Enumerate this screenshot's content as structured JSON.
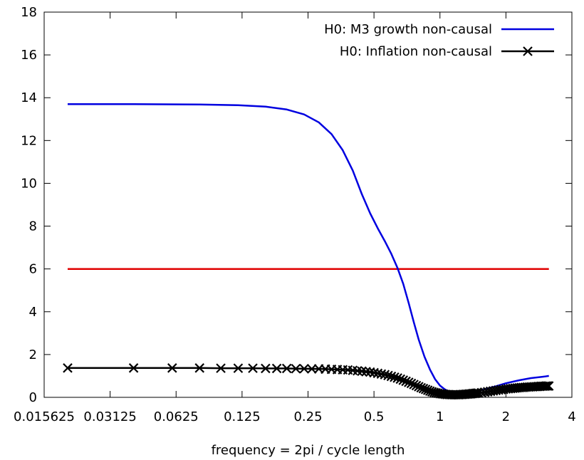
{
  "chart_data": {
    "type": "line",
    "xlabel": "frequency = 2pi / cycle length",
    "ylabel": "",
    "x_scale": "log2",
    "xlim": [
      0.015625,
      4
    ],
    "ylim": [
      0,
      18
    ],
    "x_ticks": [
      {
        "value": 0.015625,
        "label": "0.015625"
      },
      {
        "value": 0.03125,
        "label": "0.03125"
      },
      {
        "value": 0.0625,
        "label": "0.0625"
      },
      {
        "value": 0.125,
        "label": "0.125"
      },
      {
        "value": 0.25,
        "label": "0.25"
      },
      {
        "value": 0.5,
        "label": "0.5"
      },
      {
        "value": 1,
        "label": "1"
      },
      {
        "value": 2,
        "label": "2"
      },
      {
        "value": 4,
        "label": "4"
      }
    ],
    "y_ticks": [
      0,
      2,
      4,
      6,
      8,
      10,
      12,
      14,
      16,
      18
    ],
    "grid": false,
    "legend_position": "top-right",
    "series": [
      {
        "name": "H0: M3 growth non-causal",
        "color": "#0000e0",
        "marker": "none",
        "x": [
          0.02,
          0.04,
          0.08,
          0.12,
          0.16,
          0.2,
          0.24,
          0.28,
          0.32,
          0.36,
          0.4,
          0.44,
          0.48,
          0.52,
          0.56,
          0.6,
          0.64,
          0.68,
          0.72,
          0.76,
          0.8,
          0.85,
          0.9,
          0.95,
          1.0,
          1.05,
          1.1,
          1.15,
          1.2,
          1.25,
          1.3,
          1.35,
          1.4,
          1.5,
          1.6,
          1.8,
          2.0,
          2.3,
          2.6,
          3.0,
          3.14
        ],
        "values": [
          13.7,
          13.7,
          13.68,
          13.65,
          13.58,
          13.45,
          13.22,
          12.85,
          12.3,
          11.55,
          10.6,
          9.5,
          8.6,
          7.9,
          7.3,
          6.7,
          6.05,
          5.3,
          4.4,
          3.5,
          2.7,
          1.9,
          1.3,
          0.85,
          0.55,
          0.38,
          0.27,
          0.2,
          0.17,
          0.16,
          0.17,
          0.2,
          0.23,
          0.3,
          0.38,
          0.52,
          0.66,
          0.8,
          0.9,
          0.97,
          1.0
        ]
      },
      {
        "name": "H0: Inflation non-causal",
        "color": "#000000",
        "marker": "x",
        "x": [
          0.02,
          0.04,
          0.06,
          0.08,
          0.1,
          0.12,
          0.14,
          0.16,
          0.18,
          0.2,
          0.22,
          0.24,
          0.26,
          0.28,
          0.3,
          0.32,
          0.34,
          0.36,
          0.38,
          0.4,
          0.42,
          0.44,
          0.46,
          0.48,
          0.5,
          0.52,
          0.54,
          0.56,
          0.58,
          0.6,
          0.62,
          0.64,
          0.66,
          0.68,
          0.7,
          0.72,
          0.74,
          0.76,
          0.78,
          0.8,
          0.82,
          0.84,
          0.86,
          0.88,
          0.9,
          0.92,
          0.94,
          0.96,
          0.98,
          1.0,
          1.02,
          1.04,
          1.06,
          1.08,
          1.1,
          1.12,
          1.14,
          1.16,
          1.18,
          1.2,
          1.22,
          1.24,
          1.26,
          1.28,
          1.3,
          1.32,
          1.34,
          1.36,
          1.38,
          1.4,
          1.42,
          1.44,
          1.46,
          1.48,
          1.5,
          1.55,
          1.6,
          1.65,
          1.7,
          1.75,
          1.8,
          1.85,
          1.9,
          1.95,
          2.0,
          2.05,
          2.1,
          2.15,
          2.2,
          2.25,
          2.3,
          2.35,
          2.4,
          2.45,
          2.5,
          2.55,
          2.6,
          2.65,
          2.7,
          2.75,
          2.8,
          2.85,
          2.9,
          2.95,
          3.0,
          3.05,
          3.1,
          3.14
        ],
        "values": [
          1.37,
          1.37,
          1.37,
          1.37,
          1.36,
          1.36,
          1.36,
          1.35,
          1.35,
          1.35,
          1.34,
          1.34,
          1.33,
          1.33,
          1.32,
          1.31,
          1.3,
          1.29,
          1.28,
          1.26,
          1.24,
          1.22,
          1.2,
          1.18,
          1.15,
          1.12,
          1.09,
          1.06,
          1.02,
          0.98,
          0.94,
          0.9,
          0.85,
          0.8,
          0.75,
          0.7,
          0.65,
          0.6,
          0.55,
          0.5,
          0.45,
          0.41,
          0.37,
          0.33,
          0.29,
          0.26,
          0.23,
          0.21,
          0.19,
          0.17,
          0.16,
          0.15,
          0.14,
          0.13,
          0.13,
          0.12,
          0.12,
          0.12,
          0.12,
          0.12,
          0.12,
          0.13,
          0.13,
          0.14,
          0.14,
          0.15,
          0.15,
          0.16,
          0.16,
          0.17,
          0.18,
          0.18,
          0.19,
          0.2,
          0.2,
          0.22,
          0.24,
          0.26,
          0.28,
          0.3,
          0.32,
          0.34,
          0.36,
          0.37,
          0.39,
          0.4,
          0.41,
          0.42,
          0.43,
          0.44,
          0.45,
          0.46,
          0.46,
          0.47,
          0.48,
          0.48,
          0.49,
          0.49,
          0.5,
          0.5,
          0.51,
          0.51,
          0.52,
          0.52,
          0.52,
          0.53,
          0.53,
          0.53
        ]
      },
      {
        "name": "",
        "color": "#e00000",
        "marker": "none",
        "x": [
          0.02,
          3.14
        ],
        "values": [
          6,
          6
        ]
      }
    ]
  }
}
